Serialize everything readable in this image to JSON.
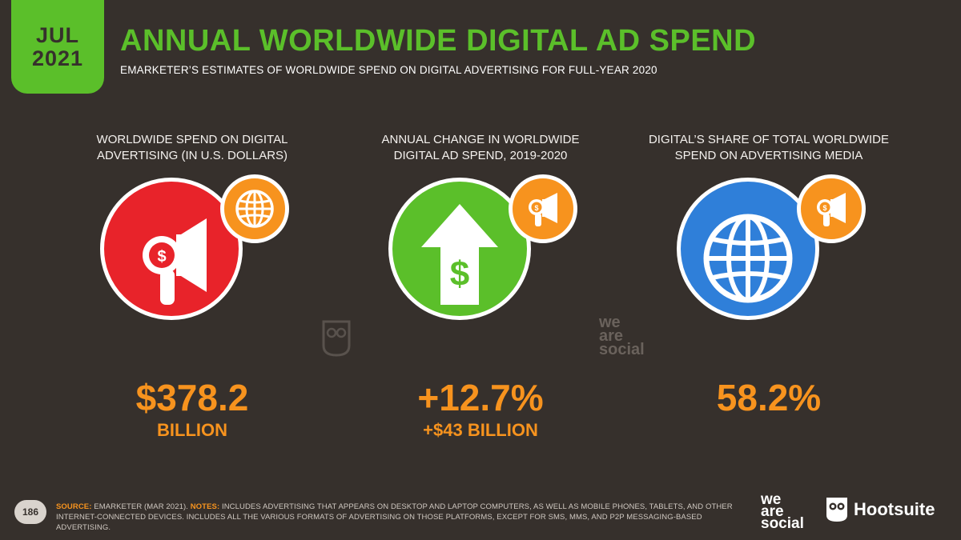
{
  "date": {
    "month": "JUL",
    "year": "2021"
  },
  "title": "ANNUAL WORLDWIDE DIGITAL AD SPEND",
  "subtitle": "EMARKETER’S ESTIMATES OF WORLDWIDE SPEND ON DIGITAL ADVERTISING FOR FULL-YEAR 2020",
  "columns": [
    {
      "label_line1": "WORLDWIDE SPEND ON DIGITAL",
      "label_line2": "ADVERTISING (IN U.S. DOLLARS)",
      "value": "$378.2",
      "sub_value": "BILLION",
      "circle_color": "#e8232a",
      "main_icon": "megaphone-dollar-icon",
      "badge_icon": "globe-icon"
    },
    {
      "label_line1": "ANNUAL CHANGE IN WORLDWIDE",
      "label_line2": "DIGITAL AD SPEND, 2019-2020",
      "value": "+12.7%",
      "sub_value": "+$43 BILLION",
      "circle_color": "#5bbf2a",
      "main_icon": "arrow-up-dollar-icon",
      "badge_icon": "megaphone-dollar-icon"
    },
    {
      "label_line1": "DIGITAL’S SHARE OF TOTAL WORLDWIDE",
      "label_line2": "SPEND ON ADVERTISING MEDIA",
      "value": "58.2%",
      "sub_value": "",
      "circle_color": "#2f7fd9",
      "main_icon": "globe-icon",
      "badge_icon": "megaphone-dollar-icon"
    }
  ],
  "colors": {
    "background": "#36302c",
    "accent_green": "#5bbf2a",
    "accent_orange": "#f7931e"
  },
  "footer": {
    "page_number": "186",
    "source_label": "SOURCE:",
    "source_text": " EMARKETER (MAR 2021). ",
    "notes_label": "NOTES:",
    "notes_text": " INCLUDES ADVERTISING THAT APPEARS ON DESKTOP AND LAPTOP COMPUTERS, AS WELL AS MOBILE PHONES, TABLETS, AND OTHER INTERNET-CONNECTED DEVICES. INCLUDES ALL THE VARIOUS FORMATS OF ADVERTISING ON THOSE PLATFORMS, EXCEPT FOR SMS, MMS, AND P2P MESSAGING-BASED ADVERTISING."
  },
  "logos": {
    "was_line1": "we",
    "was_line2": "are",
    "was_line3": "social",
    "hootsuite": "Hootsuite"
  }
}
